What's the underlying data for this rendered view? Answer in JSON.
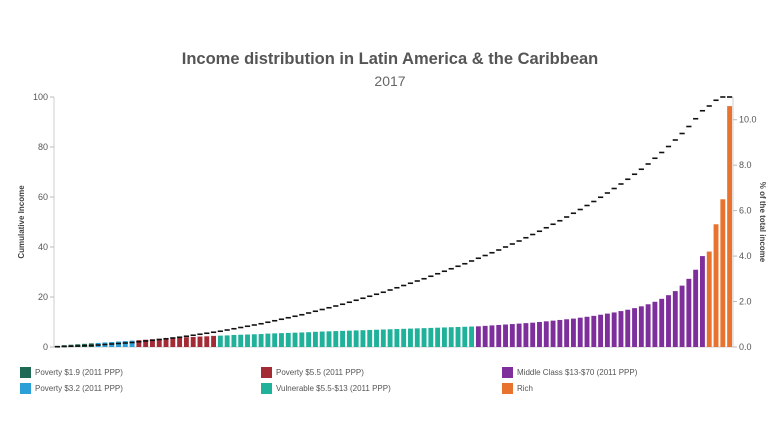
{
  "chart_data": {
    "type": "bar",
    "title": "Income distribution in Latin America & the Caribbean",
    "subtitle": "2017",
    "ylabel_left": "Cumulative Income",
    "ylabel_right": "% of the total income",
    "ylim_left": [
      0,
      100
    ],
    "yticks_left": [
      "0",
      "20",
      "40",
      "60",
      "80",
      "100"
    ],
    "ylim_right": [
      0,
      11
    ],
    "yticks_right": [
      "0.0",
      "2.0",
      "4.0",
      "6.0",
      "8.0",
      "10.0"
    ],
    "percentiles": 100,
    "groups": [
      {
        "name": "Poverty $1.9 (2011 PPP)",
        "color": "#1e6a55",
        "from": 1,
        "to": 6
      },
      {
        "name": "Poverty $3.2 (2011 PPP)",
        "color": "#2a9fd8",
        "from": 7,
        "to": 12
      },
      {
        "name": "Poverty $5.5 (2011 PPP)",
        "color": "#a32b35",
        "from": 13,
        "to": 24
      },
      {
        "name": "Vulnerable $5.5-$13 (2011 PPP)",
        "color": "#1fb19a",
        "from": 25,
        "to": 62
      },
      {
        "name": "Middle Class $13-$70 (2011 PPP)",
        "color": "#7e2f9c",
        "from": 63,
        "to": 96
      },
      {
        "name": "Rich",
        "color": "#e8732f",
        "from": 97,
        "to": 100
      }
    ],
    "share_values": [
      0.05,
      0.08,
      0.1,
      0.12,
      0.14,
      0.16,
      0.18,
      0.2,
      0.22,
      0.24,
      0.26,
      0.28,
      0.3,
      0.32,
      0.34,
      0.36,
      0.38,
      0.4,
      0.41,
      0.43,
      0.44,
      0.46,
      0.47,
      0.49,
      0.5,
      0.51,
      0.53,
      0.54,
      0.55,
      0.56,
      0.57,
      0.59,
      0.6,
      0.61,
      0.62,
      0.63,
      0.64,
      0.65,
      0.67,
      0.68,
      0.69,
      0.7,
      0.71,
      0.72,
      0.73,
      0.74,
      0.75,
      0.76,
      0.77,
      0.78,
      0.79,
      0.8,
      0.81,
      0.82,
      0.83,
      0.84,
      0.85,
      0.86,
      0.87,
      0.88,
      0.89,
      0.9,
      0.91,
      0.93,
      0.95,
      0.97,
      0.99,
      1.01,
      1.03,
      1.05,
      1.07,
      1.1,
      1.13,
      1.16,
      1.19,
      1.22,
      1.25,
      1.29,
      1.33,
      1.37,
      1.42,
      1.47,
      1.52,
      1.58,
      1.64,
      1.71,
      1.79,
      1.88,
      1.99,
      2.12,
      2.28,
      2.46,
      2.7,
      3.0,
      3.4,
      4.0,
      4.2,
      5.4,
      6.5,
      10.6
    ],
    "cumulative_values": [
      0.1,
      0.2,
      0.3,
      0.4,
      0.5,
      0.6,
      0.8,
      1.0,
      1.2,
      1.4,
      1.6,
      1.8,
      2.1,
      2.4,
      2.7,
      3.0,
      3.3,
      3.6,
      3.9,
      4.3,
      4.7,
      5.1,
      5.5,
      5.9,
      6.3,
      6.8,
      7.3,
      7.8,
      8.3,
      8.8,
      9.3,
      9.9,
      10.5,
      11.1,
      11.7,
      12.3,
      12.9,
      13.6,
      14.3,
      15.0,
      15.7,
      16.4,
      17.1,
      17.9,
      18.7,
      19.5,
      20.3,
      21.1,
      21.9,
      22.8,
      23.7,
      24.6,
      25.5,
      26.4,
      27.3,
      28.3,
      29.3,
      30.3,
      31.3,
      32.3,
      33.3,
      34.4,
      35.5,
      36.6,
      37.7,
      38.8,
      40.0,
      41.2,
      42.4,
      43.7,
      45.0,
      46.3,
      47.7,
      49.1,
      50.5,
      52.0,
      53.5,
      55.0,
      56.6,
      58.2,
      59.9,
      61.6,
      63.4,
      65.2,
      67.1,
      69.1,
      71.1,
      73.2,
      75.5,
      77.8,
      80.2,
      82.8,
      85.4,
      88.2,
      91.3,
      94.5,
      96.4,
      98.7,
      100.0,
      100.0
    ],
    "legend_position": "bottom",
    "grid": false
  }
}
